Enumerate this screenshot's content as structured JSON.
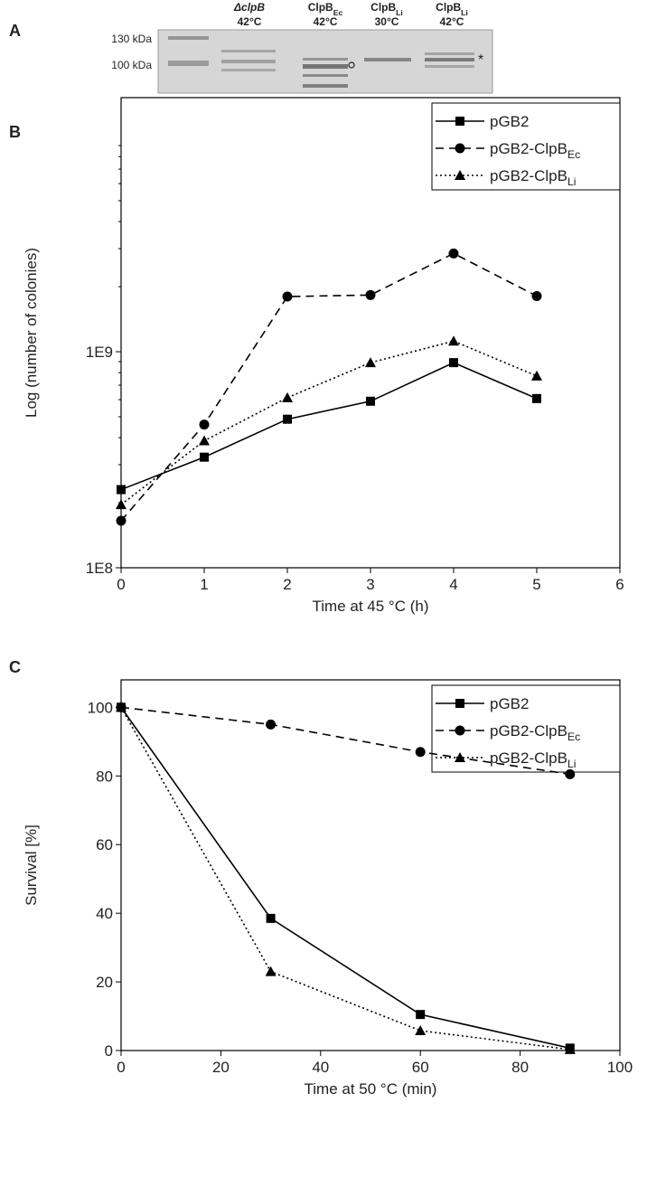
{
  "panel_a": {
    "panel": "A",
    "markers": [
      "130 kDa",
      "100 kDa"
    ],
    "band_note": "*",
    "lanes": [
      {
        "name": "ΔclpB",
        "temp": "42°C"
      },
      {
        "name": "ClpB",
        "sub": "Ec",
        "temp": "42°C"
      },
      {
        "name": "ClpB",
        "sub": "Li",
        "temp": "30°C"
      },
      {
        "name": "ClpB",
        "sub": "Li",
        "temp": "42°C"
      }
    ]
  },
  "chart_data": [
    {
      "type": "line",
      "panel": "B",
      "log_y": true,
      "xlabel": "Time at 45 °C (h)",
      "ylabel": "Log (number of colonies)",
      "x": [
        0,
        1,
        2,
        3,
        4,
        5
      ],
      "xlim": [
        0,
        6
      ],
      "xticks": [
        0,
        1,
        2,
        3,
        4,
        5,
        6
      ],
      "ylim": [
        100000000,
        15000000000
      ],
      "yticks": [
        {
          "value": 100000000,
          "label": "1E8"
        },
        {
          "value": 1000000000,
          "label": "1E9"
        }
      ],
      "legend": "upper right",
      "series": [
        {
          "name": "pGB2",
          "color": "#000000",
          "marker": "square",
          "dash": "solid",
          "values": [
            230000000,
            325000000,
            487000000,
            590000000,
            890000000,
            607000000
          ]
        },
        {
          "name": "pGB2-ClpB",
          "sub": "Ec",
          "color": "#000000",
          "marker": "circle",
          "dash": "dashed",
          "values": [
            165000000,
            460000000,
            1800000000,
            1830000000,
            2850000000,
            1810000000
          ]
        },
        {
          "name": "pGB2-ClpB",
          "sub": "Li",
          "color": "#000000",
          "marker": "triangle",
          "dash": "dotted",
          "values": [
            196000000,
            387000000,
            613000000,
            890000000,
            1120000000,
            772000000
          ]
        }
      ]
    },
    {
      "type": "line",
      "panel": "C",
      "log_y": false,
      "xlabel": "Time at 50 °C (min)",
      "ylabel": "Survival [%]",
      "x": [
        0,
        30,
        60,
        90
      ],
      "xlim": [
        0,
        100
      ],
      "xticks": [
        0,
        20,
        40,
        60,
        80,
        100
      ],
      "ylim": [
        0,
        108
      ],
      "yticks": [
        0,
        20,
        40,
        60,
        80,
        100
      ],
      "legend": "upper right",
      "series": [
        {
          "name": "pGB2",
          "color": "#000000",
          "marker": "square",
          "dash": "solid",
          "values": [
            100,
            38.5,
            10.5,
            0.7
          ]
        },
        {
          "name": "pGB2-ClpB",
          "sub": "Ec",
          "color": "#000000",
          "marker": "circle",
          "dash": "dashed",
          "values": [
            100,
            95,
            87,
            80.5
          ]
        },
        {
          "name": "pGB2-ClpB",
          "sub": "Li",
          "color": "#000000",
          "marker": "triangle",
          "dash": "dotted",
          "values": [
            100,
            23,
            5.8,
            0.3
          ]
        }
      ]
    }
  ]
}
